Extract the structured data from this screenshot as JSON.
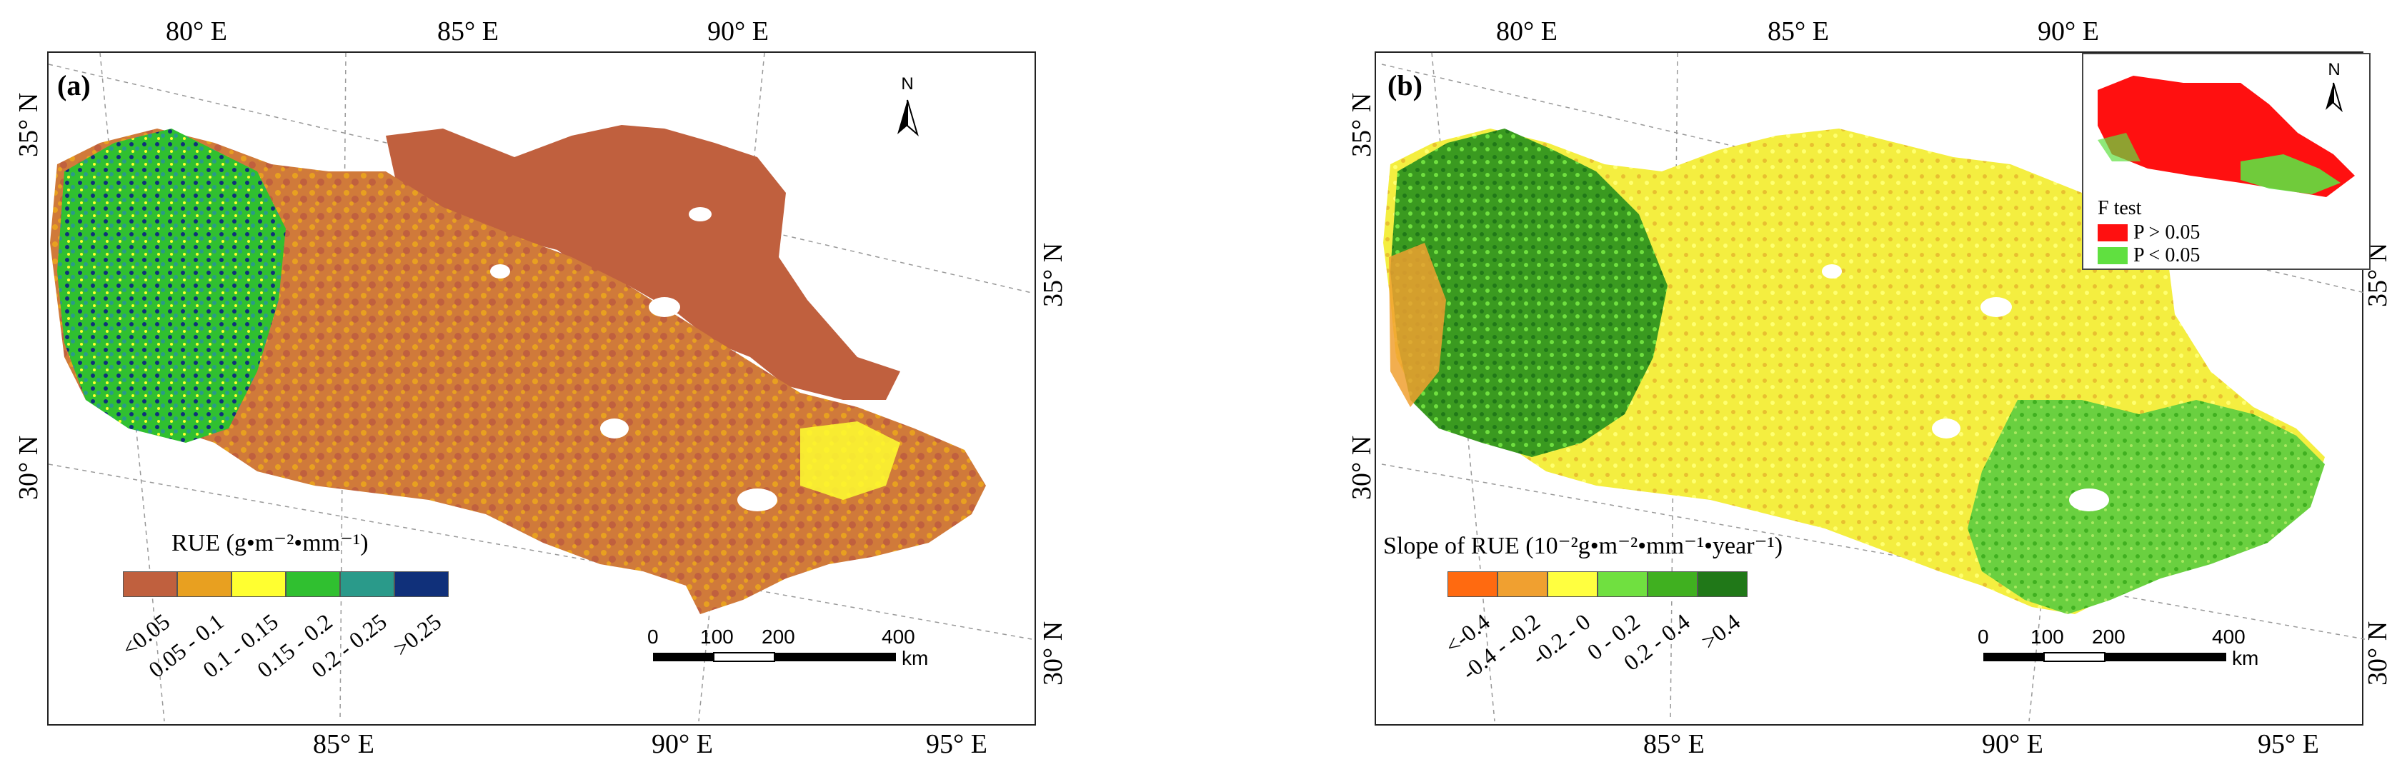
{
  "panel_a": {
    "letter": "(a)",
    "top_lon_labels": [
      "80° E",
      "85° E",
      "90° E"
    ],
    "bottom_lon_labels": [
      "85° E",
      "90° E",
      "95° E"
    ],
    "left_lat_labels": [
      "35° N",
      "30° N"
    ],
    "right_lat_labels": [
      "35° N",
      "30° N"
    ],
    "north_label": "N",
    "legend": {
      "title": "RUE (g•m⁻²•mm⁻¹)",
      "classes": [
        {
          "label": "<0.05",
          "color": "#c0603e"
        },
        {
          "label": "0.05 - 0.1",
          "color": "#e8a020"
        },
        {
          "label": "0.1 - 0.15",
          "color": "#ffff30"
        },
        {
          "label": "0.15 - 0.2",
          "color": "#30c030"
        },
        {
          "label": "0.2 - 0.25",
          "color": "#2a9a8a"
        },
        {
          "label": ">0.25",
          "color": "#10307a"
        }
      ]
    },
    "scalebar": {
      "ticks": [
        "0",
        "100",
        "200",
        "400"
      ],
      "unit": "km"
    }
  },
  "panel_b": {
    "letter": "(b)",
    "top_lon_labels": [
      "80° E",
      "85° E",
      "90° E"
    ],
    "bottom_lon_labels": [
      "85° E",
      "90° E",
      "95° E"
    ],
    "left_lat_labels": [
      "35° N",
      "30° N"
    ],
    "right_lat_labels": [
      "35° N",
      "30° N"
    ],
    "north_label": "N",
    "legend": {
      "title": "Slope of RUE (10⁻²g•m⁻²•mm⁻¹•year⁻¹)",
      "classes": [
        {
          "label": "<-0.4",
          "color": "#ff6a10"
        },
        {
          "label": "-0.4 - -0.2",
          "color": "#f0a030"
        },
        {
          "label": "-0.2 - 0",
          "color": "#ffff40"
        },
        {
          "label": "0 - 0.2",
          "color": "#70e040"
        },
        {
          "label": "0.2 - 0.4",
          "color": "#40b020"
        },
        {
          "label": ">0.4",
          "color": "#207818"
        }
      ]
    },
    "inset": {
      "north_label": "N",
      "title": "F test",
      "rows": [
        {
          "label": "P > 0.05",
          "color": "#ff1010"
        },
        {
          "label": "P < 0.05",
          "color": "#60e040"
        }
      ]
    },
    "scalebar": {
      "ticks": [
        "0",
        "100",
        "200",
        "400"
      ],
      "unit": "km"
    }
  }
}
